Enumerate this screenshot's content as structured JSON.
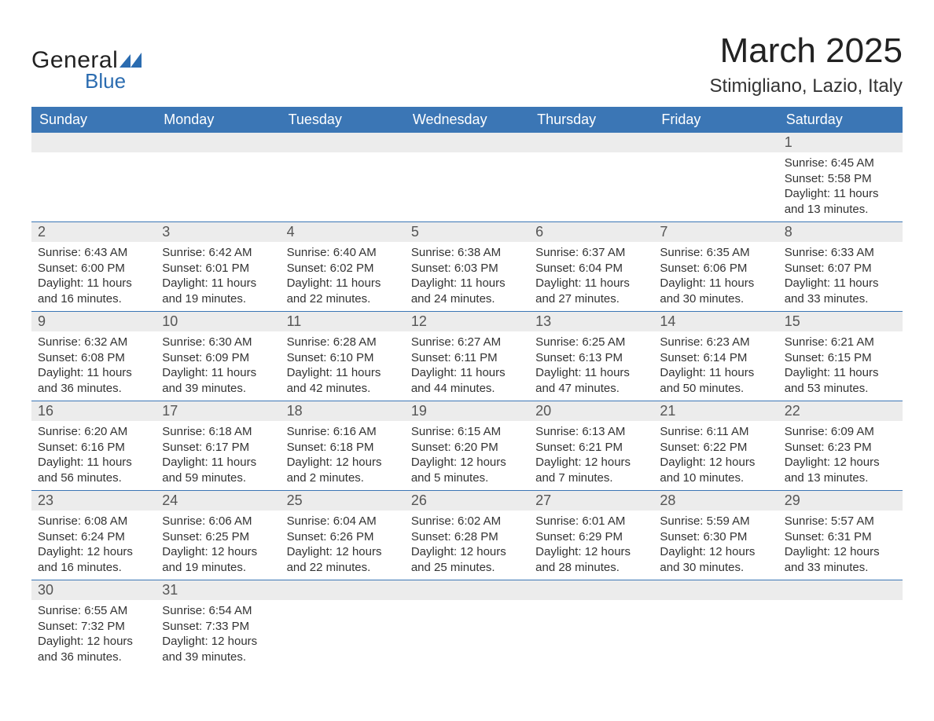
{
  "logo": {
    "text_general": "General",
    "text_blue": "Blue",
    "flag_color": "#2b6cb0"
  },
  "title": {
    "month": "March 2025",
    "location": "Stimigliano, Lazio, Italy"
  },
  "colors": {
    "header_bg": "#3b76b5",
    "header_text": "#ffffff",
    "daynum_bg": "#ececec",
    "body_text": "#333333",
    "rule": "#3b76b5"
  },
  "day_headers": [
    "Sunday",
    "Monday",
    "Tuesday",
    "Wednesday",
    "Thursday",
    "Friday",
    "Saturday"
  ],
  "weeks": [
    {
      "daynums": [
        "",
        "",
        "",
        "",
        "",
        "",
        "1"
      ],
      "cells": [
        null,
        null,
        null,
        null,
        null,
        null,
        {
          "sunrise": "Sunrise: 6:45 AM",
          "sunset": "Sunset: 5:58 PM",
          "day1": "Daylight: 11 hours",
          "day2": "and 13 minutes."
        }
      ]
    },
    {
      "daynums": [
        "2",
        "3",
        "4",
        "5",
        "6",
        "7",
        "8"
      ],
      "cells": [
        {
          "sunrise": "Sunrise: 6:43 AM",
          "sunset": "Sunset: 6:00 PM",
          "day1": "Daylight: 11 hours",
          "day2": "and 16 minutes."
        },
        {
          "sunrise": "Sunrise: 6:42 AM",
          "sunset": "Sunset: 6:01 PM",
          "day1": "Daylight: 11 hours",
          "day2": "and 19 minutes."
        },
        {
          "sunrise": "Sunrise: 6:40 AM",
          "sunset": "Sunset: 6:02 PM",
          "day1": "Daylight: 11 hours",
          "day2": "and 22 minutes."
        },
        {
          "sunrise": "Sunrise: 6:38 AM",
          "sunset": "Sunset: 6:03 PM",
          "day1": "Daylight: 11 hours",
          "day2": "and 24 minutes."
        },
        {
          "sunrise": "Sunrise: 6:37 AM",
          "sunset": "Sunset: 6:04 PM",
          "day1": "Daylight: 11 hours",
          "day2": "and 27 minutes."
        },
        {
          "sunrise": "Sunrise: 6:35 AM",
          "sunset": "Sunset: 6:06 PM",
          "day1": "Daylight: 11 hours",
          "day2": "and 30 minutes."
        },
        {
          "sunrise": "Sunrise: 6:33 AM",
          "sunset": "Sunset: 6:07 PM",
          "day1": "Daylight: 11 hours",
          "day2": "and 33 minutes."
        }
      ]
    },
    {
      "daynums": [
        "9",
        "10",
        "11",
        "12",
        "13",
        "14",
        "15"
      ],
      "cells": [
        {
          "sunrise": "Sunrise: 6:32 AM",
          "sunset": "Sunset: 6:08 PM",
          "day1": "Daylight: 11 hours",
          "day2": "and 36 minutes."
        },
        {
          "sunrise": "Sunrise: 6:30 AM",
          "sunset": "Sunset: 6:09 PM",
          "day1": "Daylight: 11 hours",
          "day2": "and 39 minutes."
        },
        {
          "sunrise": "Sunrise: 6:28 AM",
          "sunset": "Sunset: 6:10 PM",
          "day1": "Daylight: 11 hours",
          "day2": "and 42 minutes."
        },
        {
          "sunrise": "Sunrise: 6:27 AM",
          "sunset": "Sunset: 6:11 PM",
          "day1": "Daylight: 11 hours",
          "day2": "and 44 minutes."
        },
        {
          "sunrise": "Sunrise: 6:25 AM",
          "sunset": "Sunset: 6:13 PM",
          "day1": "Daylight: 11 hours",
          "day2": "and 47 minutes."
        },
        {
          "sunrise": "Sunrise: 6:23 AM",
          "sunset": "Sunset: 6:14 PM",
          "day1": "Daylight: 11 hours",
          "day2": "and 50 minutes."
        },
        {
          "sunrise": "Sunrise: 6:21 AM",
          "sunset": "Sunset: 6:15 PM",
          "day1": "Daylight: 11 hours",
          "day2": "and 53 minutes."
        }
      ]
    },
    {
      "daynums": [
        "16",
        "17",
        "18",
        "19",
        "20",
        "21",
        "22"
      ],
      "cells": [
        {
          "sunrise": "Sunrise: 6:20 AM",
          "sunset": "Sunset: 6:16 PM",
          "day1": "Daylight: 11 hours",
          "day2": "and 56 minutes."
        },
        {
          "sunrise": "Sunrise: 6:18 AM",
          "sunset": "Sunset: 6:17 PM",
          "day1": "Daylight: 11 hours",
          "day2": "and 59 minutes."
        },
        {
          "sunrise": "Sunrise: 6:16 AM",
          "sunset": "Sunset: 6:18 PM",
          "day1": "Daylight: 12 hours",
          "day2": "and 2 minutes."
        },
        {
          "sunrise": "Sunrise: 6:15 AM",
          "sunset": "Sunset: 6:20 PM",
          "day1": "Daylight: 12 hours",
          "day2": "and 5 minutes."
        },
        {
          "sunrise": "Sunrise: 6:13 AM",
          "sunset": "Sunset: 6:21 PM",
          "day1": "Daylight: 12 hours",
          "day2": "and 7 minutes."
        },
        {
          "sunrise": "Sunrise: 6:11 AM",
          "sunset": "Sunset: 6:22 PM",
          "day1": "Daylight: 12 hours",
          "day2": "and 10 minutes."
        },
        {
          "sunrise": "Sunrise: 6:09 AM",
          "sunset": "Sunset: 6:23 PM",
          "day1": "Daylight: 12 hours",
          "day2": "and 13 minutes."
        }
      ]
    },
    {
      "daynums": [
        "23",
        "24",
        "25",
        "26",
        "27",
        "28",
        "29"
      ],
      "cells": [
        {
          "sunrise": "Sunrise: 6:08 AM",
          "sunset": "Sunset: 6:24 PM",
          "day1": "Daylight: 12 hours",
          "day2": "and 16 minutes."
        },
        {
          "sunrise": "Sunrise: 6:06 AM",
          "sunset": "Sunset: 6:25 PM",
          "day1": "Daylight: 12 hours",
          "day2": "and 19 minutes."
        },
        {
          "sunrise": "Sunrise: 6:04 AM",
          "sunset": "Sunset: 6:26 PM",
          "day1": "Daylight: 12 hours",
          "day2": "and 22 minutes."
        },
        {
          "sunrise": "Sunrise: 6:02 AM",
          "sunset": "Sunset: 6:28 PM",
          "day1": "Daylight: 12 hours",
          "day2": "and 25 minutes."
        },
        {
          "sunrise": "Sunrise: 6:01 AM",
          "sunset": "Sunset: 6:29 PM",
          "day1": "Daylight: 12 hours",
          "day2": "and 28 minutes."
        },
        {
          "sunrise": "Sunrise: 5:59 AM",
          "sunset": "Sunset: 6:30 PM",
          "day1": "Daylight: 12 hours",
          "day2": "and 30 minutes."
        },
        {
          "sunrise": "Sunrise: 5:57 AM",
          "sunset": "Sunset: 6:31 PM",
          "day1": "Daylight: 12 hours",
          "day2": "and 33 minutes."
        }
      ]
    },
    {
      "daynums": [
        "30",
        "31",
        "",
        "",
        "",
        "",
        ""
      ],
      "cells": [
        {
          "sunrise": "Sunrise: 6:55 AM",
          "sunset": "Sunset: 7:32 PM",
          "day1": "Daylight: 12 hours",
          "day2": "and 36 minutes."
        },
        {
          "sunrise": "Sunrise: 6:54 AM",
          "sunset": "Sunset: 7:33 PM",
          "day1": "Daylight: 12 hours",
          "day2": "and 39 minutes."
        },
        null,
        null,
        null,
        null,
        null
      ]
    }
  ]
}
